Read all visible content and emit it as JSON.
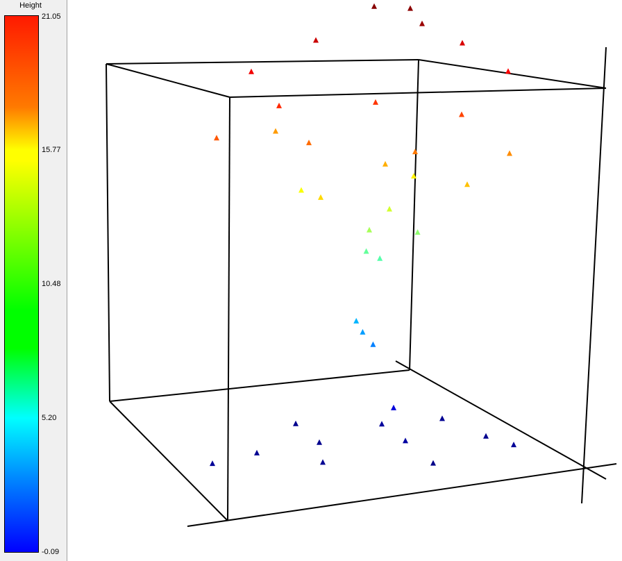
{
  "chart_data": {
    "type": "scatter",
    "dimensions": 3,
    "colorbar": {
      "label": "Height",
      "ticks": [
        "21.05",
        "15.77",
        "10.48",
        "5.20",
        "-0.09"
      ],
      "range": [
        -0.09,
        21.05
      ],
      "colormap": "jet",
      "colors": {
        "max": "#ff0000",
        "mid_high": "#ffff00",
        "mid": "#00ff00",
        "mid_low": "#00ffff",
        "min": "#0000ff"
      }
    },
    "marker": "triangle",
    "series": [
      {
        "values": [
          [
            0.45,
            0.95,
            20.9
          ],
          [
            0.55,
            0.95,
            20.8
          ],
          [
            0.6,
            0.8,
            20.5
          ],
          [
            0.3,
            0.85,
            19.5
          ],
          [
            0.7,
            0.9,
            19.2
          ],
          [
            0.15,
            0.6,
            18.7
          ],
          [
            0.85,
            0.7,
            18.4
          ],
          [
            0.25,
            0.4,
            17.6
          ],
          [
            0.5,
            0.55,
            17.3
          ],
          [
            0.75,
            0.45,
            17.0
          ],
          [
            0.1,
            0.2,
            16.6
          ],
          [
            0.35,
            0.25,
            16.2
          ],
          [
            0.65,
            0.2,
            15.9
          ],
          [
            0.9,
            0.3,
            15.5
          ],
          [
            0.2,
            0.75,
            15.2
          ],
          [
            0.55,
            0.35,
            14.8
          ],
          [
            0.8,
            0.15,
            14.4
          ],
          [
            0.4,
            0.1,
            13.9
          ],
          [
            0.6,
            0.6,
            13.4
          ],
          [
            0.3,
            0.5,
            13.0
          ],
          [
            0.55,
            0.45,
            12.2
          ],
          [
            0.5,
            0.4,
            11.3
          ],
          [
            0.62,
            0.52,
            10.8
          ],
          [
            0.48,
            0.5,
            9.9
          ],
          [
            0.52,
            0.48,
            9.6
          ],
          [
            0.45,
            0.52,
            6.3
          ],
          [
            0.47,
            0.5,
            5.8
          ],
          [
            0.5,
            0.49,
            5.2
          ],
          [
            0.1,
            0.1,
            0.4
          ],
          [
            0.2,
            0.3,
            0.3
          ],
          [
            0.35,
            0.5,
            0.2
          ],
          [
            0.5,
            0.7,
            0.5
          ],
          [
            0.65,
            0.85,
            0.3
          ],
          [
            0.8,
            0.6,
            0.2
          ],
          [
            0.9,
            0.4,
            0.4
          ],
          [
            0.7,
            0.2,
            0.1
          ],
          [
            0.4,
            0.15,
            0.3
          ],
          [
            0.25,
            0.8,
            0.2
          ],
          [
            0.6,
            0.4,
            0.6
          ],
          [
            0.55,
            0.55,
            1.8
          ]
        ]
      }
    ]
  }
}
